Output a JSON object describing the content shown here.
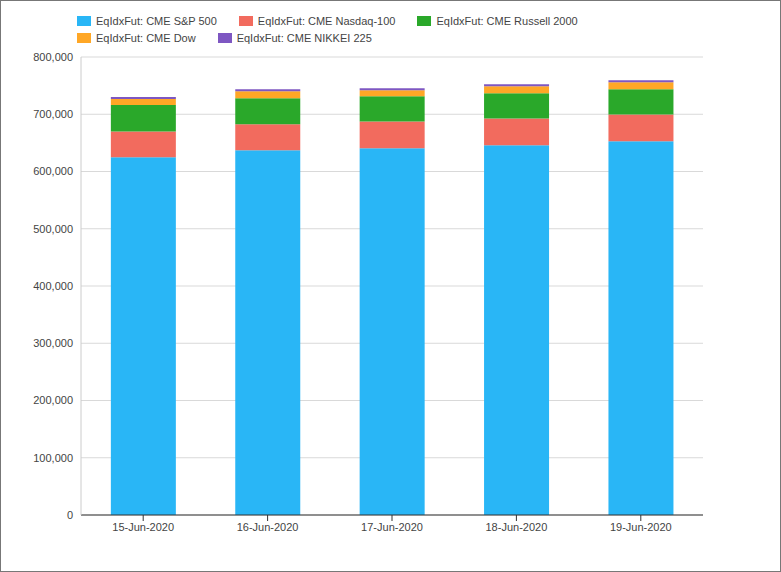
{
  "chart_data": {
    "type": "bar",
    "stacked": true,
    "grid": true,
    "legend": "top",
    "categories": [
      "15-Jun-2020",
      "16-Jun-2020",
      "17-Jun-2020",
      "18-Jun-2020",
      "19-Jun-2020"
    ],
    "series": [
      {
        "name": "EqIdxFut: CME S&P 500",
        "color": "#29b6f6",
        "values": [
          625000,
          637000,
          640500,
          645750,
          652750
        ]
      },
      {
        "name": "EqIdxFut: CME Nasdaq-100",
        "color": "#f26b5e",
        "values": [
          45000,
          45500,
          47000,
          47000,
          47000
        ]
      },
      {
        "name": "EqIdxFut: CME Russell 2000",
        "color": "#2aa82a",
        "values": [
          46000,
          45500,
          44000,
          44000,
          44000
        ]
      },
      {
        "name": "EqIdxFut: CME Dow",
        "color": "#ffa726",
        "values": [
          10500,
          12000,
          10500,
          12000,
          12000
        ]
      },
      {
        "name": "EqIdxFut: CME NIKKEI 225",
        "color": "#7e57c2",
        "values": [
          3500,
          3500,
          3500,
          3500,
          3500
        ]
      }
    ],
    "ylim": [
      0,
      800000
    ],
    "yticks": [
      0,
      {
        "value": 100000,
        "label": "100,000"
      },
      {
        "value": 200000,
        "label": "200,000"
      },
      {
        "value": 300000,
        "label": "300,000"
      },
      {
        "value": 400000,
        "label": "400,000"
      },
      {
        "value": 500000,
        "label": "500,000"
      },
      {
        "value": 600000,
        "label": "600,000"
      },
      {
        "value": 700000,
        "label": "700,000"
      },
      {
        "value": 800000,
        "label": "800,000"
      }
    ]
  }
}
